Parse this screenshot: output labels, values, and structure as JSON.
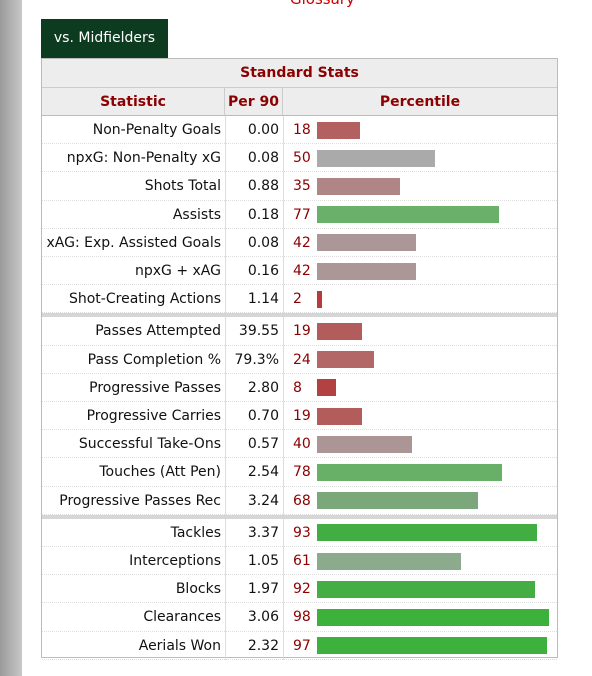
{
  "header": {
    "glossary": "Glossary",
    "tab": "vs. Midfielders"
  },
  "table": {
    "title": "Standard Stats",
    "headers": [
      "Statistic",
      "Per 90",
      "Percentile"
    ],
    "groups": [
      {
        "rows": [
          {
            "statistic": "Non-Penalty Goals",
            "per90": "0.00",
            "percentile": 18,
            "color": "#b36060"
          },
          {
            "statistic": "npxG: Non-Penalty xG",
            "per90": "0.08",
            "percentile": 50,
            "color": "#aaaaaa"
          },
          {
            "statistic": "Shots Total",
            "per90": "0.88",
            "percentile": 35,
            "color": "#b08585"
          },
          {
            "statistic": "Assists",
            "per90": "0.18",
            "percentile": 77,
            "color": "#6aaf6a"
          },
          {
            "statistic": "xAG: Exp. Assisted Goals",
            "per90": "0.08",
            "percentile": 42,
            "color": "#ab9797"
          },
          {
            "statistic": "npxG + xAG",
            "per90": "0.16",
            "percentile": 42,
            "color": "#ab9797"
          },
          {
            "statistic": "Shot-Creating Actions",
            "per90": "1.14",
            "percentile": 2,
            "color": "#b83a3a"
          }
        ]
      },
      {
        "rows": [
          {
            "statistic": "Passes Attempted",
            "per90": "39.55",
            "percentile": 19,
            "color": "#b35c5c"
          },
          {
            "statistic": "Pass Completion %",
            "per90": "79.3%",
            "percentile": 24,
            "color": "#b36767"
          },
          {
            "statistic": "Progressive Passes",
            "per90": "2.80",
            "percentile": 8,
            "color": "#b24141"
          },
          {
            "statistic": "Progressive Carries",
            "per90": "0.70",
            "percentile": 19,
            "color": "#b35c5c"
          },
          {
            "statistic": "Successful Take-Ons",
            "per90": "0.57",
            "percentile": 40,
            "color": "#ab9595"
          },
          {
            "statistic": "Touches (Att Pen)",
            "per90": "2.54",
            "percentile": 78,
            "color": "#68b068"
          },
          {
            "statistic": "Progressive Passes Rec",
            "per90": "3.24",
            "percentile": 68,
            "color": "#7aa87a"
          }
        ]
      },
      {
        "rows": [
          {
            "statistic": "Tackles",
            "per90": "3.37",
            "percentile": 93,
            "color": "#42ad42"
          },
          {
            "statistic": "Interceptions",
            "per90": "1.05",
            "percentile": 61,
            "color": "#8caa8c"
          },
          {
            "statistic": "Blocks",
            "per90": "1.97",
            "percentile": 92,
            "color": "#44ad44"
          },
          {
            "statistic": "Clearances",
            "per90": "3.06",
            "percentile": 98,
            "color": "#3cb13c"
          },
          {
            "statistic": "Aerials Won",
            "per90": "2.32",
            "percentile": 97,
            "color": "#3db03d"
          }
        ]
      }
    ]
  }
}
